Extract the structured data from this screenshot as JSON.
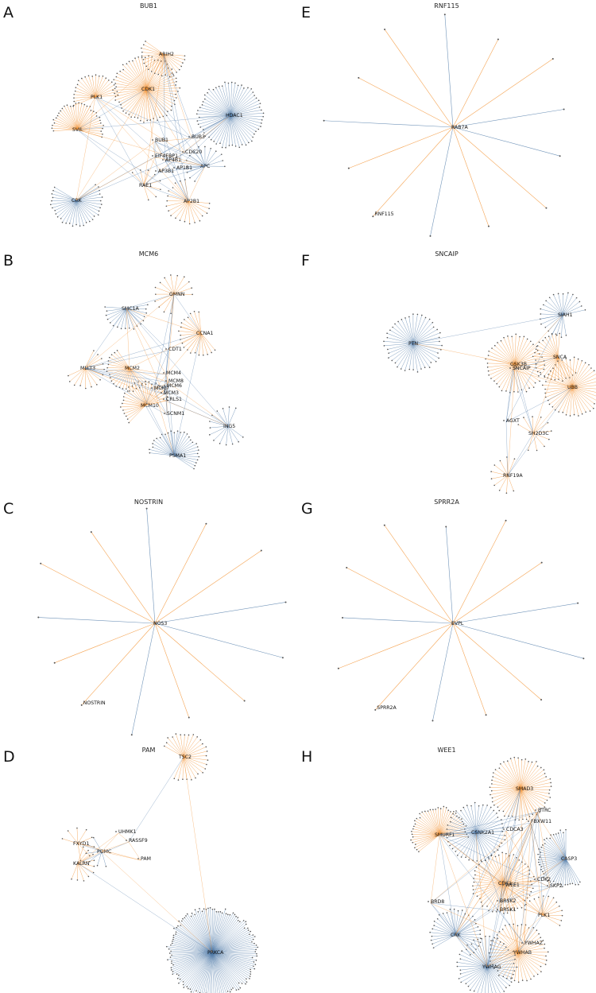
{
  "colors": {
    "orange": "#f28e2b",
    "blue": "#4e79a7",
    "node": "#555555"
  },
  "panels": [
    {
      "letter": "A",
      "title": "BUB1",
      "hubs": [
        {
          "label": "CDK1",
          "color": "orange",
          "leaves": 60
        },
        {
          "label": "HDAC1",
          "color": "blue",
          "leaves": 60
        },
        {
          "label": "PLK1",
          "color": "orange",
          "leaves": 22
        },
        {
          "label": "SVIL",
          "color": "orange",
          "leaves": 32
        },
        {
          "label": "ARIH2",
          "color": "orange",
          "leaves": 22
        },
        {
          "label": "CRK",
          "color": "blue",
          "leaves": 32
        },
        {
          "label": "AP2B1",
          "color": "orange",
          "leaves": 20
        },
        {
          "label": "APC",
          "color": "blue",
          "leaves": 14
        },
        {
          "label": "RAE1",
          "color": "orange",
          "leaves": 8
        }
      ],
      "labels": [
        "BUB1",
        "BUB3",
        "CDC20",
        "EIF4EBP1",
        "AP4B1",
        "AP1B1",
        "AP3B1"
      ]
    },
    {
      "letter": "B",
      "title": "MCM6",
      "hubs": [
        {
          "label": "SMC1A",
          "color": "blue",
          "leaves": 18
        },
        {
          "label": "GMNN",
          "color": "orange",
          "leaves": 14
        },
        {
          "label": "CCNA1",
          "color": "orange",
          "leaves": 20
        },
        {
          "label": "MLLT3",
          "color": "orange",
          "leaves": 14
        },
        {
          "label": "MCM2",
          "color": "orange",
          "leaves": 22
        },
        {
          "label": "MCM10",
          "color": "orange",
          "leaves": 26
        },
        {
          "label": "ING5",
          "color": "blue",
          "leaves": 14
        },
        {
          "label": "PSMA1",
          "color": "blue",
          "leaves": 28
        }
      ],
      "labels": [
        "CDT1",
        "MCM4",
        "MCM8",
        "MCM6",
        "MCM7",
        "MCM3",
        "CRLS1",
        "SCNM1"
      ]
    },
    {
      "letter": "C",
      "title": "NOSTRIN",
      "center": "NOS3",
      "outer": "NOSTRIN"
    },
    {
      "letter": "D",
      "title": "PAM",
      "hubs": [
        {
          "label": "TSC2",
          "color": "orange",
          "leaves": 26
        },
        {
          "label": "FXYD1",
          "color": "orange",
          "leaves": 8
        },
        {
          "label": "KALRN",
          "color": "orange",
          "leaves": 10
        },
        {
          "label": "POMC",
          "color": "blue",
          "leaves": 6
        },
        {
          "label": "PRKCA",
          "color": "blue",
          "leaves": 130
        }
      ],
      "labels": [
        "UHMK1",
        "RASSF9",
        "PAM"
      ]
    },
    {
      "letter": "E",
      "title": "RNF115",
      "center": "RAB7A",
      "outer": "RNF115"
    },
    {
      "letter": "F",
      "title": "SNCAIP",
      "hubs": [
        {
          "label": "PTN",
          "color": "blue",
          "leaves": 42
        },
        {
          "label": "SIAH1",
          "color": "blue",
          "leaves": 22
        },
        {
          "label": "GSK3B",
          "color": "orange",
          "leaves": 44
        },
        {
          "label": "SNCA",
          "color": "orange",
          "leaves": 26
        },
        {
          "label": "UBB",
          "color": "orange",
          "leaves": 44
        },
        {
          "label": "SH2D3C",
          "color": "orange",
          "leaves": 10
        },
        {
          "label": "RNF19A",
          "color": "orange",
          "leaves": 10
        }
      ],
      "labels": [
        "SNCAIP",
        "AGXT"
      ]
    },
    {
      "letter": "G",
      "title": "SPRR2A",
      "center": "EVPL",
      "outer": "SPRR2A"
    },
    {
      "letter": "H",
      "title": "WEE1",
      "hubs": [
        {
          "label": "SMAD3",
          "color": "orange",
          "leaves": 52
        },
        {
          "label": "SMURF1",
          "color": "orange",
          "leaves": 40
        },
        {
          "label": "CSNK2A1",
          "color": "blue",
          "leaves": 44
        },
        {
          "label": "CASP3",
          "color": "blue",
          "leaves": 40
        },
        {
          "label": "CDK1",
          "color": "orange",
          "leaves": 50
        },
        {
          "label": "CRK",
          "color": "blue",
          "leaves": 30
        },
        {
          "label": "YWHAB",
          "color": "orange",
          "leaves": 44
        },
        {
          "label": "YWHAG",
          "color": "blue",
          "leaves": 46
        },
        {
          "label": "PLK1",
          "color": "orange",
          "leaves": 14
        }
      ],
      "labels": [
        "BTRC",
        "FBXW11",
        "CDCA3",
        "WEE1",
        "CDK2",
        "SKP2",
        "BRD8",
        "BRSK2",
        "BRSK1",
        "YWHAZ"
      ]
    }
  ]
}
